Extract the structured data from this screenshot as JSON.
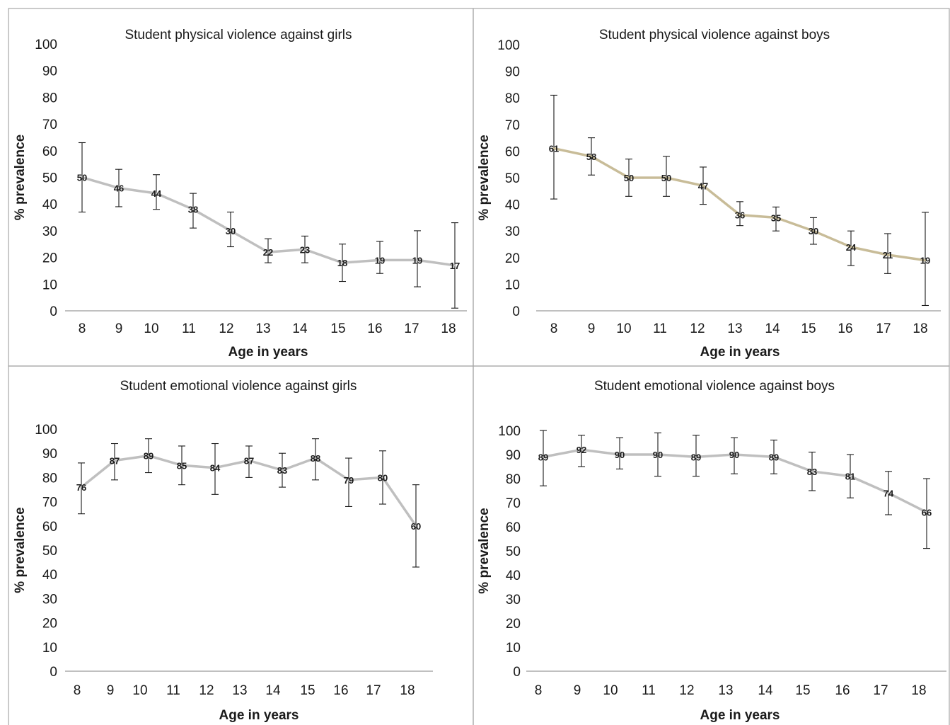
{
  "figure": {
    "ylabel": "% prevalence",
    "xlabel": "Age in years",
    "colors": {
      "border": "#a6a6a6",
      "text": "#1a1a1a",
      "line_grey": "#bfbfbf",
      "line_tan": "#c8bc98"
    }
  },
  "chart_data": [
    {
      "type": "line",
      "title": "Student physical violence against girls",
      "xlabel": "Age in years",
      "ylabel": "% prevalence",
      "ylim": [
        0,
        100
      ],
      "yticks": [
        "0",
        "10",
        "20",
        "30",
        "40",
        "50",
        "60",
        "70",
        "80",
        "90",
        "100"
      ],
      "categories": [
        "8",
        "9",
        "10",
        "11",
        "12",
        "13",
        "14",
        "15",
        "16",
        "17",
        "18"
      ],
      "series": [
        {
          "values": [
            50,
            46,
            44,
            38,
            30,
            22,
            23,
            18,
            19,
            19,
            17
          ],
          "labels": [
            "50",
            "46",
            "44",
            "38",
            "30",
            "22",
            "23",
            "18",
            "19",
            "19",
            "17"
          ],
          "ci_low": [
            37,
            39,
            38,
            31,
            24,
            18,
            18,
            11,
            14,
            9,
            1
          ],
          "ci_high": [
            63,
            53,
            51,
            44,
            37,
            27,
            28,
            25,
            26,
            30,
            33
          ],
          "color": "#bfbfbf"
        }
      ],
      "grid": false
    },
    {
      "type": "line",
      "title": "Student physical violence against boys",
      "xlabel": "Age in years",
      "ylabel": "% prevalence",
      "ylim": [
        0,
        100
      ],
      "yticks": [
        "0",
        "10",
        "20",
        "30",
        "40",
        "50",
        "60",
        "70",
        "80",
        "90",
        "100"
      ],
      "categories": [
        "8",
        "9",
        "10",
        "11",
        "12",
        "13",
        "14",
        "15",
        "16",
        "17",
        "18"
      ],
      "series": [
        {
          "values": [
            61,
            58,
            50,
            50,
            47,
            36,
            35,
            30,
            24,
            21,
            19
          ],
          "labels": [
            "61",
            "58",
            "50",
            "50",
            "47",
            "36",
            "35",
            "30",
            "24",
            "21",
            "19"
          ],
          "ci_low": [
            42,
            51,
            43,
            43,
            40,
            32,
            30,
            25,
            17,
            14,
            2
          ],
          "ci_high": [
            81,
            65,
            57,
            58,
            54,
            41,
            39,
            35,
            30,
            29,
            37
          ],
          "color": "#c8bc98"
        }
      ],
      "grid": false
    },
    {
      "type": "line",
      "title": "Student emotional violence against girls",
      "xlabel": "Age in years",
      "ylabel": "% prevalence",
      "ylim": [
        0,
        100
      ],
      "yticks": [
        "0",
        "10",
        "20",
        "30",
        "40",
        "50",
        "60",
        "70",
        "80",
        "90",
        "100"
      ],
      "categories": [
        "8",
        "9",
        "10",
        "11",
        "12",
        "13",
        "14",
        "15",
        "16",
        "17",
        "18"
      ],
      "series": [
        {
          "values": [
            76,
            87,
            89,
            85,
            84,
            87,
            83,
            88,
            79,
            80,
            60
          ],
          "labels": [
            "76",
            "87",
            "89",
            "85",
            "84",
            "87",
            "83",
            "88",
            "79",
            "80",
            "60"
          ],
          "ci_low": [
            65,
            79,
            82,
            77,
            73,
            80,
            76,
            79,
            68,
            69,
            43
          ],
          "ci_high": [
            86,
            94,
            96,
            93,
            94,
            93,
            90,
            96,
            88,
            91,
            77
          ],
          "color": "#bfbfbf"
        }
      ],
      "grid": false
    },
    {
      "type": "line",
      "title": "Student emotional violence against boys",
      "xlabel": "Age in years",
      "ylabel": "% prevalence",
      "ylim": [
        0,
        100
      ],
      "yticks": [
        "0",
        "10",
        "20",
        "30",
        "40",
        "50",
        "60",
        "70",
        "80",
        "90",
        "100"
      ],
      "categories": [
        "8",
        "9",
        "10",
        "11",
        "12",
        "13",
        "14",
        "15",
        "16",
        "17",
        "18"
      ],
      "series": [
        {
          "values": [
            89,
            92,
            90,
            90,
            89,
            90,
            89,
            83,
            81,
            74,
            66
          ],
          "labels": [
            "89",
            "92",
            "90",
            "90",
            "89",
            "90",
            "89",
            "83",
            "81",
            "74",
            "66"
          ],
          "ci_low": [
            77,
            85,
            84,
            81,
            81,
            82,
            82,
            75,
            72,
            65,
            51
          ],
          "ci_high": [
            100,
            98,
            97,
            99,
            98,
            97,
            96,
            91,
            90,
            83,
            80
          ],
          "color": "#bfbfbf"
        }
      ],
      "grid": false
    }
  ]
}
